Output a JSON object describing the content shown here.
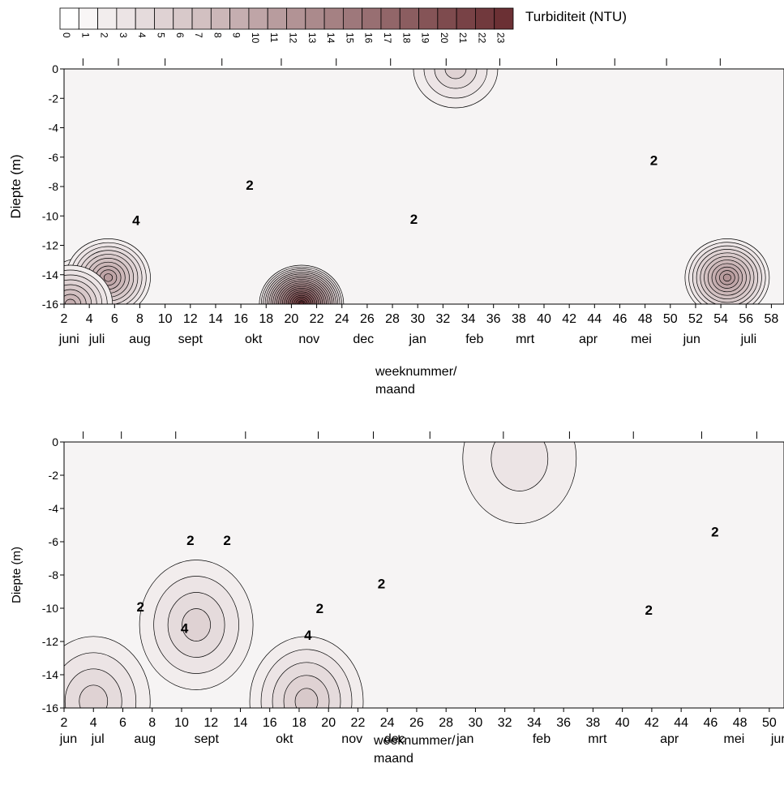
{
  "chart_data": [
    {
      "type": "heatmap",
      "subtype": "contour",
      "title": "",
      "colorbar": {
        "label": "Turbiditeit (NTU)",
        "levels": [
          0,
          1,
          2,
          3,
          4,
          5,
          6,
          7,
          8,
          9,
          10,
          11,
          12,
          13,
          14,
          15,
          16,
          17,
          18,
          19,
          20,
          21,
          22,
          23
        ],
        "color_low": "#ffffff",
        "color_high": "#6b3034"
      },
      "xlabel": "weeknummer/",
      "xlabel2": "maand",
      "ylabel": "Diepte (m)",
      "xlim": [
        2,
        59
      ],
      "ylim": [
        -16,
        0
      ],
      "x_ticks": [
        2,
        4,
        6,
        8,
        10,
        12,
        14,
        16,
        18,
        20,
        22,
        24,
        26,
        28,
        30,
        32,
        34,
        36,
        38,
        40,
        42,
        44,
        46,
        48,
        50,
        52,
        54,
        56,
        58
      ],
      "y_ticks": [
        0,
        -2,
        -4,
        -6,
        -8,
        -10,
        -12,
        -14,
        -16
      ],
      "months": [
        {
          "label": "juni",
          "x": 2.4
        },
        {
          "label": "juli",
          "x": 4.6
        },
        {
          "label": "aug",
          "x": 8
        },
        {
          "label": "sept",
          "x": 12
        },
        {
          "label": "okt",
          "x": 17
        },
        {
          "label": "nov",
          "x": 21.4
        },
        {
          "label": "dec",
          "x": 25.7
        },
        {
          "label": "jan",
          "x": 30
        },
        {
          "label": "feb",
          "x": 34.5
        },
        {
          "label": "mrt",
          "x": 38.5
        },
        {
          "label": "apr",
          "x": 43.5
        },
        {
          "label": "mei",
          "x": 47.7
        },
        {
          "label": "jun",
          "x": 51.7
        },
        {
          "label": "juli",
          "x": 56.2
        }
      ],
      "contour_labels": [
        {
          "text": "4",
          "x": 7.7,
          "y": -10.3
        },
        {
          "text": "2",
          "x": 16.7,
          "y": -7.9
        },
        {
          "text": "2",
          "x": 29.7,
          "y": -10.2
        },
        {
          "text": "2",
          "x": 48.7,
          "y": -6.2
        }
      ],
      "hotspots": [
        {
          "x": 3.5,
          "y": -15.5,
          "value": 10
        },
        {
          "x": 5.5,
          "y": -14.2,
          "value": 11
        },
        {
          "x": 20.8,
          "y": -16,
          "value": 23
        },
        {
          "x": 33,
          "y": 0,
          "value": 5
        },
        {
          "x": 54.5,
          "y": -14.2,
          "value": 12
        },
        {
          "x": 2.5,
          "y": -16,
          "value": 9
        }
      ]
    },
    {
      "type": "heatmap",
      "subtype": "contour",
      "title": "",
      "xlabel": "weeknummer/",
      "xlabel2": "maand",
      "ylabel": "Diepte (m)",
      "xlim": [
        2,
        51
      ],
      "ylim": [
        -16,
        0
      ],
      "x_ticks": [
        2,
        4,
        6,
        8,
        10,
        12,
        14,
        16,
        18,
        20,
        22,
        24,
        26,
        28,
        30,
        32,
        34,
        36,
        38,
        40,
        42,
        44,
        46,
        48,
        50
      ],
      "y_ticks": [
        0,
        -2,
        -4,
        -6,
        -8,
        -10,
        -12,
        -14,
        -16
      ],
      "months": [
        {
          "label": "jun",
          "x": 2.3
        },
        {
          "label": "jul",
          "x": 4.3
        },
        {
          "label": "aug",
          "x": 7.5
        },
        {
          "label": "sept",
          "x": 11.7
        },
        {
          "label": "okt",
          "x": 17
        },
        {
          "label": "nov",
          "x": 21.6
        },
        {
          "label": "dec",
          "x": 24.5
        },
        {
          "label": "jan",
          "x": 29.3
        },
        {
          "label": "feb",
          "x": 34.5
        },
        {
          "label": "mrt",
          "x": 38.3
        },
        {
          "label": "apr",
          "x": 43.2
        },
        {
          "label": "mei",
          "x": 47.6
        },
        {
          "label": "jun",
          "x": 50.7
        }
      ],
      "contour_labels": [
        {
          "text": "2",
          "x": 7.2,
          "y": -9.9
        },
        {
          "text": "4",
          "x": 10.2,
          "y": -11.2
        },
        {
          "text": "2",
          "x": 10.6,
          "y": -5.9
        },
        {
          "text": "2",
          "x": 13.1,
          "y": -5.9
        },
        {
          "text": "2",
          "x": 19.4,
          "y": -10
        },
        {
          "text": "4",
          "x": 18.6,
          "y": -11.6
        },
        {
          "text": "2",
          "x": 23.6,
          "y": -8.5
        },
        {
          "text": "2",
          "x": 41.8,
          "y": -10.1
        },
        {
          "text": "2",
          "x": 46.3,
          "y": -5.4
        }
      ],
      "hotspots": [
        {
          "x": 4,
          "y": -15.6,
          "value": 5
        },
        {
          "x": 11,
          "y": -11,
          "value": 5
        },
        {
          "x": 18.5,
          "y": -15.6,
          "value": 6
        },
        {
          "x": 33,
          "y": -1,
          "value": 3
        }
      ]
    }
  ]
}
